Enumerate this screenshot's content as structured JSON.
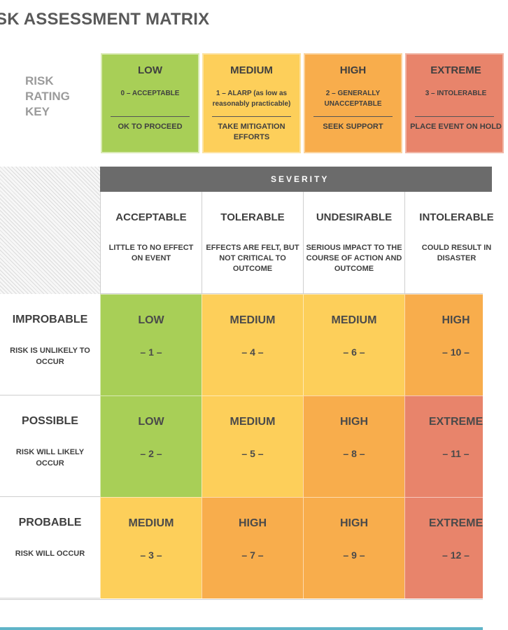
{
  "title": "SK ASSESSMENT MATRIX",
  "key": {
    "label_lines": [
      "RISK",
      "RATING",
      "KEY"
    ],
    "levels": [
      {
        "level": "LOW",
        "description": "0 – ACCEPTABLE",
        "action": "OK TO PROCEED",
        "color": "#a8cf57"
      },
      {
        "level": "MEDIUM",
        "description": "1 – ALARP (as low as reasonably practicable)",
        "action": "TAKE MITIGATION EFFORTS",
        "color": "#fdcf5a"
      },
      {
        "level": "HIGH",
        "description": "2 – GENERALLY UNACCEPTABLE",
        "action": "SEEK SUPPORT",
        "color": "#f8ad4c"
      },
      {
        "level": "EXTREME",
        "description": "3 – INTOLERABLE",
        "action": "PLACE EVENT ON HOLD",
        "color": "#e8846b"
      }
    ]
  },
  "severity_header": "SEVERITY",
  "severity": [
    {
      "name": "ACCEPTABLE",
      "effect": "LITTLE TO NO EFFECT ON EVENT"
    },
    {
      "name": "TOLERABLE",
      "effect": "EFFECTS ARE FELT, BUT NOT CRITICAL TO OUTCOME"
    },
    {
      "name": "UNDESIRABLE",
      "effect": "SERIOUS IMPACT TO THE COURSE OF ACTION AND OUTCOME"
    },
    {
      "name": "INTOLERABLE",
      "effect": "COULD RESULT IN DISASTER"
    }
  ],
  "likelihood": [
    {
      "name": "IMPROBABLE",
      "desc": "RISK IS UNLIKELY TO OCCUR"
    },
    {
      "name": "POSSIBLE",
      "desc": "RISK WILL LIKELY OCCUR"
    },
    {
      "name": "PROBABLE",
      "desc": "RISK WILL OCCUR"
    }
  ],
  "matrix": [
    [
      {
        "rating": "LOW",
        "number": "– 1 –",
        "color": "#a8cf57"
      },
      {
        "rating": "MEDIUM",
        "number": "– 4 –",
        "color": "#fdcf5a"
      },
      {
        "rating": "MEDIUM",
        "number": "– 6 –",
        "color": "#fdcf5a"
      },
      {
        "rating": "HIGH",
        "number": "– 10 –",
        "color": "#f8ad4c"
      }
    ],
    [
      {
        "rating": "LOW",
        "number": "– 2 –",
        "color": "#a8cf57"
      },
      {
        "rating": "MEDIUM",
        "number": "– 5 –",
        "color": "#fdcf5a"
      },
      {
        "rating": "HIGH",
        "number": "– 8 –",
        "color": "#f8ad4c"
      },
      {
        "rating": "EXTREME",
        "number": "– 11 –",
        "color": "#e8846b"
      }
    ],
    [
      {
        "rating": "MEDIUM",
        "number": "– 3 –",
        "color": "#fdcf5a"
      },
      {
        "rating": "HIGH",
        "number": "– 7 –",
        "color": "#f8ad4c"
      },
      {
        "rating": "HIGH",
        "number": "– 9 –",
        "color": "#f8ad4c"
      },
      {
        "rating": "EXTREME",
        "number": "– 12 –",
        "color": "#e8846b"
      }
    ]
  ]
}
